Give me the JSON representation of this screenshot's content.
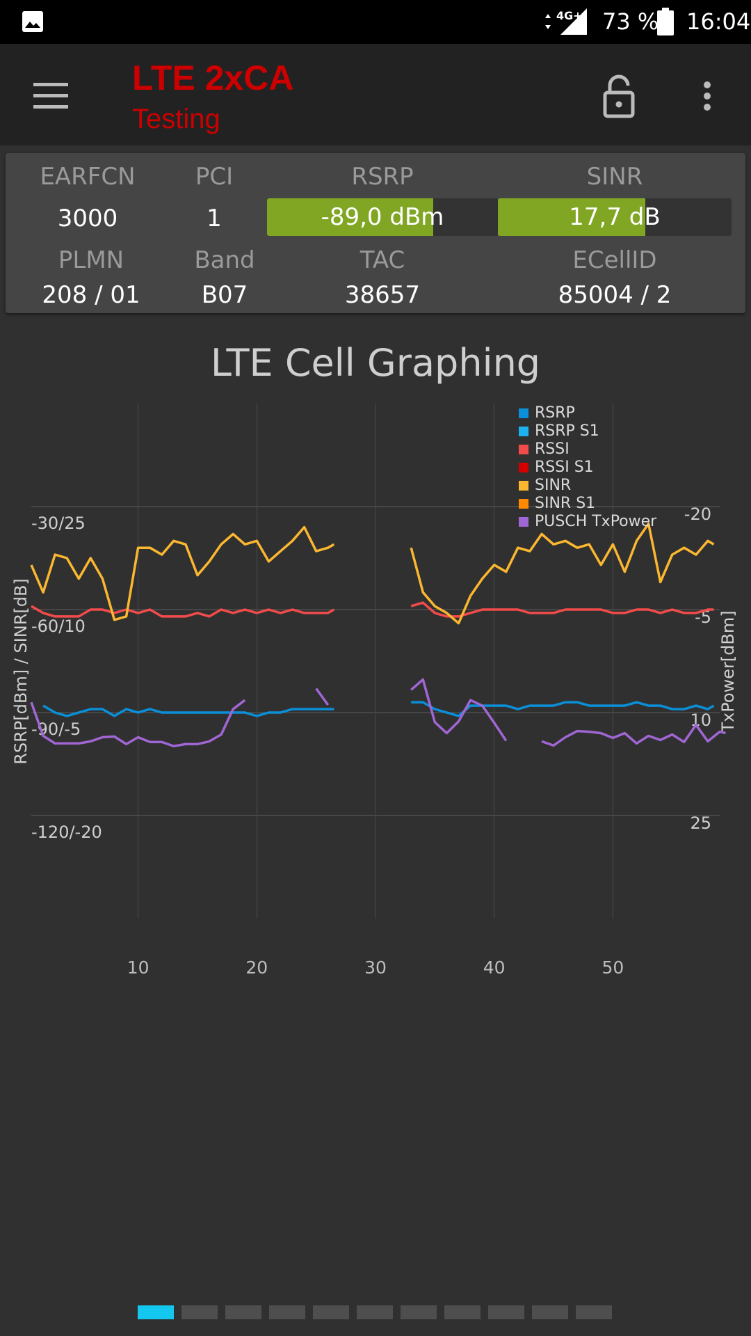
{
  "status_bar": {
    "notification_icon": "gallery-icon",
    "network": "4G+",
    "battery_percent": "73 %",
    "time": "16:04"
  },
  "app_bar": {
    "title": "LTE 2xCA",
    "subtitle": "Testing",
    "menu_icon": "hamburger-menu-icon",
    "lock_icon": "lock-icon",
    "more_icon": "more-vert-icon"
  },
  "info": {
    "labels": {
      "earfcn": "EARFCN",
      "pci": "PCI",
      "rsrp": "RSRP",
      "sinr": "SINR",
      "plmn": "PLMN",
      "band": "Band",
      "tac": "TAC",
      "ecellid": "ECellID"
    },
    "values": {
      "earfcn": "3000",
      "pci": "1",
      "rsrp": "-89,0 dBm",
      "sinr": "17,7 dB",
      "plmn": "208 / 01",
      "band": "B07",
      "tac": "38657",
      "ecellid": "85004 / 2"
    },
    "rsrp_bar_fraction": 0.72,
    "sinr_bar_fraction": 0.63,
    "bar_color": "#80a624"
  },
  "chart_data": {
    "type": "line",
    "title": "LTE Cell Graphing",
    "ylabel": "RSRP[dBm] / SINR[dB]",
    "y2label": "TxPower[dBm]",
    "x_ticks": [
      "10",
      "20",
      "30",
      "40",
      "50"
    ],
    "xlim": [
      1,
      59
    ],
    "y_ticks": [
      "-30/25",
      "-60/10",
      "-90/-5",
      "-120/-20"
    ],
    "y_tick_values": [
      -30,
      -60,
      -90,
      -120
    ],
    "ylim": [
      -150,
      0
    ],
    "y2_ticks": [
      "-20",
      "-5",
      "10",
      "25"
    ],
    "y2_tick_values": [
      -20,
      -5,
      10,
      25
    ],
    "y2lim": [
      -35,
      40
    ],
    "legend_position": "top-right",
    "series": [
      {
        "name": "RSRP",
        "color": "#0a8fd8",
        "axis": "left",
        "points": [
          [
            2,
            -88
          ],
          [
            3,
            -90
          ],
          [
            4,
            -91
          ],
          [
            5,
            -90
          ],
          [
            6,
            -89
          ],
          [
            7,
            -89
          ],
          [
            8,
            -91
          ],
          [
            9,
            -89
          ],
          [
            10,
            -90
          ],
          [
            11,
            -89
          ],
          [
            12,
            -90
          ],
          [
            13,
            -90
          ],
          [
            14,
            -90
          ],
          [
            15,
            -90
          ],
          [
            16,
            -90
          ],
          [
            17,
            -90
          ],
          [
            18,
            -90
          ],
          [
            19,
            -90
          ],
          [
            20,
            -91
          ],
          [
            21,
            -90
          ],
          [
            22,
            -90
          ],
          [
            23,
            -89
          ],
          [
            24,
            -89
          ],
          [
            25,
            -89
          ],
          [
            26,
            -89
          ],
          [
            26.5,
            -89
          ],
          [
            null,
            null
          ],
          [
            33,
            -87
          ],
          [
            34,
            -87
          ],
          [
            35,
            -89
          ],
          [
            36,
            -90
          ],
          [
            37,
            -91
          ],
          [
            38,
            -88
          ],
          [
            39,
            -88
          ],
          [
            40,
            -88
          ],
          [
            41,
            -88
          ],
          [
            42,
            -89
          ],
          [
            43,
            -88
          ],
          [
            44,
            -88
          ],
          [
            45,
            -88
          ],
          [
            46,
            -87
          ],
          [
            47,
            -87
          ],
          [
            48,
            -88
          ],
          [
            49,
            -88
          ],
          [
            50,
            -88
          ],
          [
            51,
            -88
          ],
          [
            52,
            -87
          ],
          [
            53,
            -88
          ],
          [
            54,
            -88
          ],
          [
            55,
            -89
          ],
          [
            56,
            -89
          ],
          [
            57,
            -88
          ],
          [
            58,
            -89
          ],
          [
            58.5,
            -88
          ]
        ]
      },
      {
        "name": "RSRP S1",
        "color": "#1cb2f0",
        "axis": "left",
        "points": []
      },
      {
        "name": "RSSI",
        "color": "#f24b4b",
        "axis": "left",
        "points": [
          [
            1,
            -59
          ],
          [
            2,
            -61
          ],
          [
            3,
            -62
          ],
          [
            4,
            -62
          ],
          [
            5,
            -62
          ],
          [
            6,
            -60
          ],
          [
            7,
            -60
          ],
          [
            8,
            -61
          ],
          [
            9,
            -60
          ],
          [
            10,
            -61
          ],
          [
            11,
            -60
          ],
          [
            12,
            -62
          ],
          [
            13,
            -62
          ],
          [
            14,
            -62
          ],
          [
            15,
            -61
          ],
          [
            16,
            -62
          ],
          [
            17,
            -60
          ],
          [
            18,
            -61
          ],
          [
            19,
            -60
          ],
          [
            20,
            -61
          ],
          [
            21,
            -60
          ],
          [
            22,
            -61
          ],
          [
            23,
            -60
          ],
          [
            24,
            -61
          ],
          [
            25,
            -61
          ],
          [
            26,
            -61
          ],
          [
            26.5,
            -60
          ],
          [
            null,
            null
          ],
          [
            33,
            -59
          ],
          [
            34,
            -58
          ],
          [
            35,
            -61
          ],
          [
            36,
            -62
          ],
          [
            37,
            -62
          ],
          [
            38,
            -61
          ],
          [
            39,
            -60
          ],
          [
            40,
            -60
          ],
          [
            41,
            -60
          ],
          [
            42,
            -60
          ],
          [
            43,
            -61
          ],
          [
            44,
            -61
          ],
          [
            45,
            -61
          ],
          [
            46,
            -60
          ],
          [
            47,
            -60
          ],
          [
            48,
            -60
          ],
          [
            49,
            -60
          ],
          [
            50,
            -61
          ],
          [
            51,
            -61
          ],
          [
            52,
            -60
          ],
          [
            53,
            -60
          ],
          [
            54,
            -61
          ],
          [
            55,
            -60
          ],
          [
            56,
            -61
          ],
          [
            57,
            -61
          ],
          [
            58,
            -60
          ],
          [
            58.5,
            -60
          ]
        ]
      },
      {
        "name": "RSSI S1",
        "color": "#d40000",
        "axis": "left",
        "points": []
      },
      {
        "name": "SINR",
        "color": "#fbb730",
        "axis": "left",
        "points": [
          [
            1,
            -47
          ],
          [
            2,
            -55
          ],
          [
            3,
            -44
          ],
          [
            4,
            -45
          ],
          [
            5,
            -51
          ],
          [
            6,
            -45
          ],
          [
            7,
            -51
          ],
          [
            8,
            -63
          ],
          [
            9,
            -62
          ],
          [
            10,
            -42
          ],
          [
            11,
            -42
          ],
          [
            12,
            -44
          ],
          [
            13,
            -40
          ],
          [
            14,
            -41
          ],
          [
            15,
            -50
          ],
          [
            16,
            -46
          ],
          [
            17,
            -41
          ],
          [
            18,
            -38
          ],
          [
            19,
            -41
          ],
          [
            20,
            -40
          ],
          [
            21,
            -46
          ],
          [
            22,
            -43
          ],
          [
            23,
            -40
          ],
          [
            24,
            -36
          ],
          [
            25,
            -43
          ],
          [
            26,
            -42
          ],
          [
            26.5,
            -41
          ],
          [
            null,
            null
          ],
          [
            33,
            -42
          ],
          [
            34,
            -55
          ],
          [
            35,
            -59
          ],
          [
            36,
            -61
          ],
          [
            37,
            -64
          ],
          [
            38,
            -56
          ],
          [
            39,
            -51
          ],
          [
            40,
            -47
          ],
          [
            41,
            -49
          ],
          [
            42,
            -42
          ],
          [
            43,
            -43
          ],
          [
            44,
            -38
          ],
          [
            45,
            -41
          ],
          [
            46,
            -40
          ],
          [
            47,
            -42
          ],
          [
            48,
            -41
          ],
          [
            49,
            -47
          ],
          [
            50,
            -41
          ],
          [
            51,
            -49
          ],
          [
            52,
            -40
          ],
          [
            53,
            -35
          ],
          [
            54,
            -52
          ],
          [
            55,
            -44
          ],
          [
            56,
            -42
          ],
          [
            57,
            -44
          ],
          [
            58,
            -40
          ],
          [
            58.5,
            -41
          ]
        ]
      },
      {
        "name": "SINR S1",
        "color": "#ff8a00",
        "axis": "left",
        "points": []
      },
      {
        "name": "PUSCH TxPower",
        "color": "#a066d3",
        "axis": "right",
        "points": [
          [
            1,
            8.5
          ],
          [
            2,
            13.4
          ],
          [
            3,
            14.5
          ],
          [
            4,
            14.5
          ],
          [
            5,
            14.5
          ],
          [
            6,
            14.2
          ],
          [
            7,
            13.6
          ],
          [
            8,
            13.5
          ],
          [
            9,
            14.6
          ],
          [
            10,
            13.6
          ],
          [
            11,
            14.3
          ],
          [
            12,
            14.3
          ],
          [
            13,
            14.9
          ],
          [
            14,
            14.6
          ],
          [
            15,
            14.6
          ],
          [
            16,
            14.2
          ],
          [
            17,
            13.2
          ],
          [
            18,
            9.5
          ],
          [
            19,
            8.2
          ],
          [
            null,
            null
          ],
          [
            25,
            6.5
          ],
          [
            26,
            8.9
          ],
          [
            null,
            null
          ],
          [
            33,
            6.7
          ],
          [
            34,
            5.2
          ],
          [
            35,
            11.4
          ],
          [
            36,
            13.0
          ],
          [
            37,
            11.3
          ],
          [
            38,
            8.2
          ],
          [
            39,
            9.0
          ],
          [
            40,
            11.5
          ],
          [
            41,
            14.1
          ],
          [
            null,
            null
          ],
          [
            44,
            14.2
          ],
          [
            45,
            14.8
          ],
          [
            46,
            13.6
          ],
          [
            47,
            12.7
          ],
          [
            48,
            12.8
          ],
          [
            49,
            13.0
          ],
          [
            50,
            13.7
          ],
          [
            51,
            13.0
          ],
          [
            52,
            14.5
          ],
          [
            53,
            13.4
          ],
          [
            54,
            14.0
          ],
          [
            55,
            13.2
          ],
          [
            56,
            14.3
          ],
          [
            57,
            11.8
          ],
          [
            58,
            14.2
          ],
          [
            59,
            12.8
          ],
          [
            59.5,
            13.0
          ]
        ]
      }
    ]
  },
  "pager": {
    "count": 11,
    "active_index": 0,
    "active_color": "#13c7ee"
  }
}
